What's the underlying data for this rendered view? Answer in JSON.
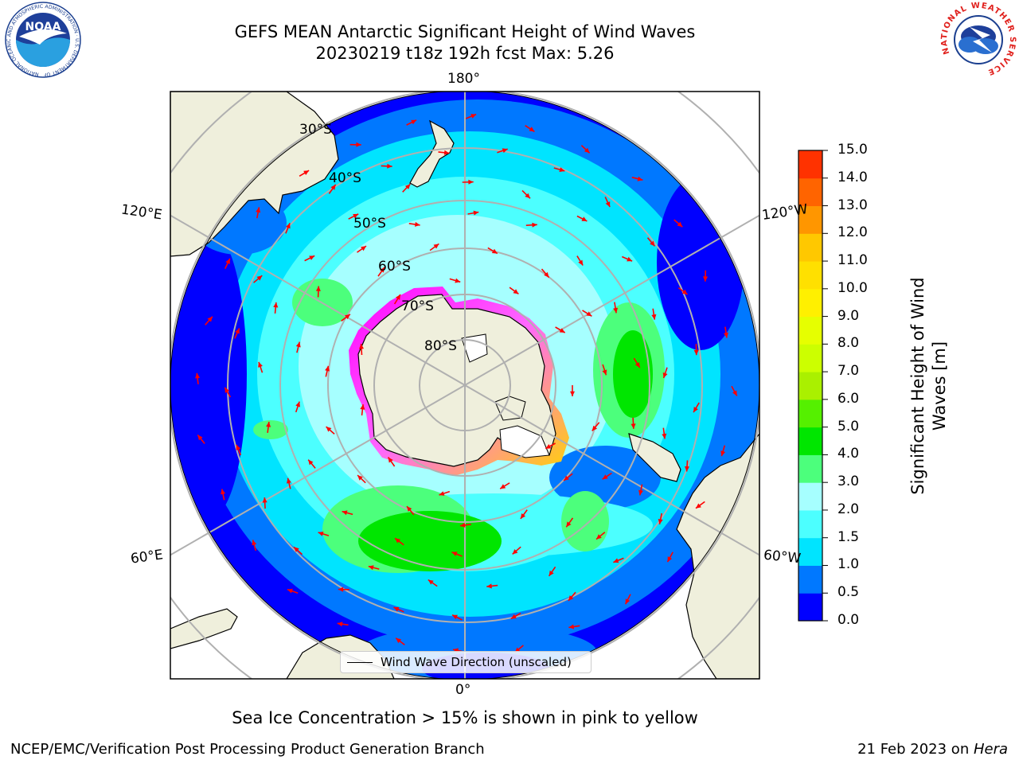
{
  "header": {
    "title_line1": "GEFS MEAN Antarctic Significant Height of Wind Waves",
    "title_line2": "20230219 t18z 192h fcst   Max: 5.26"
  },
  "logos": {
    "left": {
      "name": "noaa-logo",
      "text": "NOAA",
      "ring_text": "NATIONAL OCEANIC AND ATMOSPHERIC ADMINISTRATION · U.S. DEPARTMENT OF COMMERCE"
    },
    "right": {
      "name": "national-weather-service-logo",
      "ring_text": "NATIONAL WEATHER SERVICE"
    }
  },
  "map": {
    "projection": "south-polar-stereographic",
    "longitude_labels": {
      "top": "180°",
      "bottom": "0°",
      "upper_left": "120°E",
      "upper_right": "120°W",
      "lower_left": "60°E",
      "lower_right": "60°W"
    },
    "latitude_labels": [
      "30°S",
      "40°S",
      "50°S",
      "60°S",
      "70°S",
      "80°S"
    ],
    "legend": "Wind Wave Direction (unscaled)",
    "colors": {
      "land": "#efefdc",
      "ocean_low": "#0000ff",
      "ocean_mid": "#00b4ff",
      "sea_ice": "#ff00ff",
      "grid": "#b0b0b0",
      "arrow": "#ff0000"
    }
  },
  "colorbar": {
    "label": "Significant Height of Wind Waves [m]",
    "ticks": [
      "15.0",
      "14.0",
      "13.0",
      "12.0",
      "11.0",
      "10.0",
      "9.0",
      "8.0",
      "7.0",
      "6.0",
      "5.0",
      "4.0",
      "3.0",
      "2.0",
      "1.5",
      "1.0",
      "0.5",
      "0.0"
    ],
    "colors": [
      "#0000ff",
      "#0078ff",
      "#00e4ff",
      "#4cffff",
      "#a6ffff",
      "#4cff7c",
      "#00e600",
      "#55f000",
      "#aaf000",
      "#ccff00",
      "#e6ff00",
      "#fff000",
      "#ffe000",
      "#ffc800",
      "#ff9600",
      "#ff6400",
      "#ff3200",
      "#ff0000"
    ]
  },
  "caption": "Sea Ice Concentration > 15% is shown in pink to yellow",
  "footer": {
    "left": "NCEP/EMC/Verification Post Processing Product Generation Branch",
    "right_prefix": "21 Feb 2023 on ",
    "right_italic": "Hera"
  }
}
